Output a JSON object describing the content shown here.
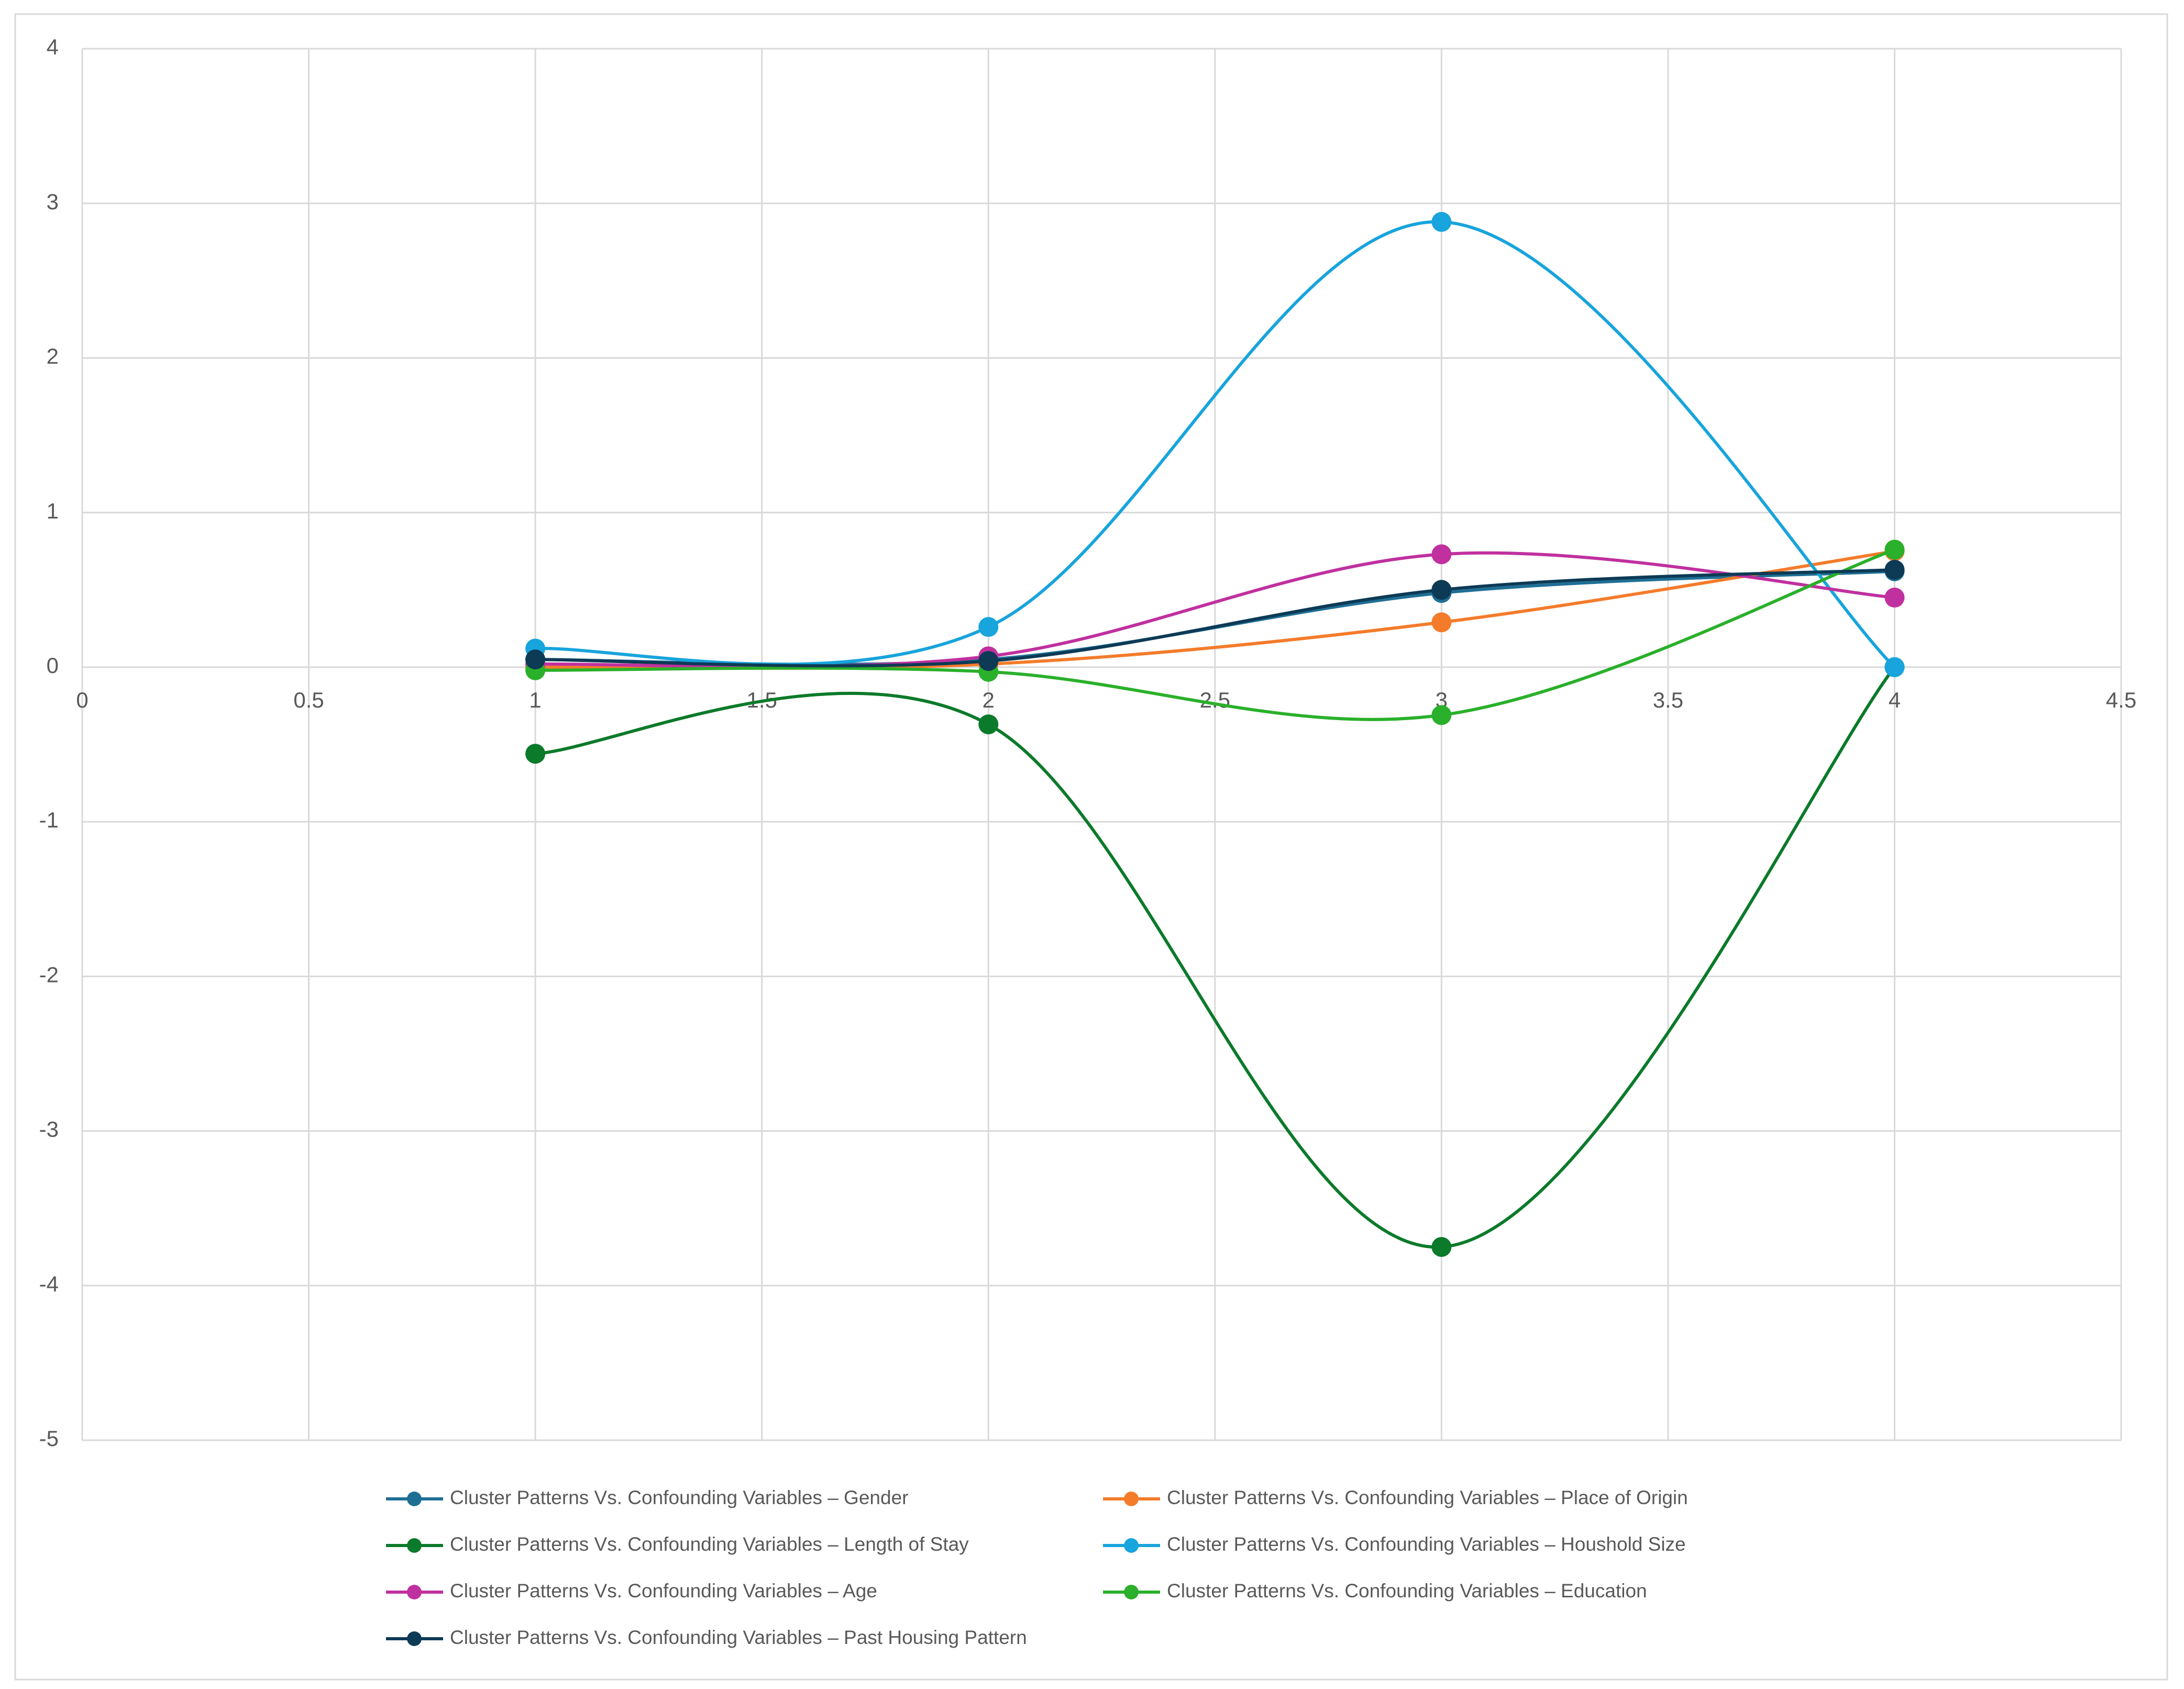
{
  "chart_data": {
    "type": "line",
    "smooth": true,
    "grid": true,
    "legend": "bottom",
    "x": [
      1,
      2,
      3,
      4
    ],
    "xlim": [
      0,
      4.5
    ],
    "xticks": [
      0,
      0.5,
      1,
      1.5,
      2,
      2.5,
      3,
      3.5,
      4,
      4.5
    ],
    "ylim": [
      -5,
      4
    ],
    "yticks": [
      -5,
      -4,
      -3,
      -2,
      -1,
      0,
      1,
      2,
      3,
      4
    ],
    "series": [
      {
        "name": "Cluster Patterns Vs. Confounding Variables – Gender",
        "color": "#1f6f95",
        "values": [
          0.05,
          0.05,
          0.48,
          0.62
        ]
      },
      {
        "name": "Cluster Patterns Vs. Confounding Variables – Place of Origin",
        "color": "#f47b2a",
        "values": [
          0.0,
          0.02,
          0.29,
          0.75
        ]
      },
      {
        "name": "Cluster Patterns Vs. Confounding Variables – Length of Stay",
        "color": "#0b7a2a",
        "values": [
          -0.56,
          -0.37,
          -3.75,
          0.0
        ]
      },
      {
        "name": "Cluster Patterns Vs. Confounding Variables – Houshold Size",
        "color": "#18a4dc",
        "values": [
          0.12,
          0.26,
          2.88,
          0.0
        ]
      },
      {
        "name": "Cluster Patterns Vs. Confounding Variables – Age",
        "color": "#c0309f",
        "values": [
          0.02,
          0.07,
          0.73,
          0.45
        ]
      },
      {
        "name": "Cluster Patterns Vs. Confounding Variables – Education",
        "color": "#2ab02a",
        "values": [
          -0.02,
          -0.03,
          -0.31,
          0.76
        ]
      },
      {
        "name": "Cluster Patterns Vs. Confounding Variables – Past Housing Pattern",
        "color": "#0d3a55",
        "values": [
          0.05,
          0.04,
          0.5,
          0.63
        ]
      }
    ]
  }
}
